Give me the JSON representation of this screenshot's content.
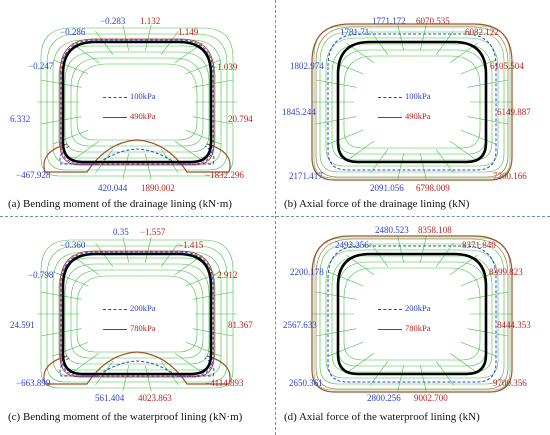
{
  "colors": {
    "blue": "#2b3fd6",
    "red": "#b8231d",
    "brown": "#a0522d",
    "grid": "#3fbf3f",
    "lining": "#000000"
  },
  "panels": [
    {
      "caption": "(a) Bending moment of the drainage lining (kN·m)",
      "legend": [
        "100kPa",
        "490kPa"
      ],
      "labels": [
        {
          "text": "−0.283",
          "color": "blue"
        },
        {
          "text": "1.132",
          "color": "red"
        },
        {
          "text": "−0.286",
          "color": "blue"
        },
        {
          "text": "1.149",
          "color": "red"
        },
        {
          "text": "−0.247",
          "color": "blue"
        },
        {
          "text": "−1.039",
          "color": "red"
        },
        {
          "text": "6.332",
          "color": "blue"
        },
        {
          "text": "20.794",
          "color": "red"
        },
        {
          "text": "−467.928",
          "color": "blue"
        },
        {
          "text": "−1832.296",
          "color": "red"
        },
        {
          "text": "420.044",
          "color": "blue"
        },
        {
          "text": "1890.002",
          "color": "red"
        }
      ]
    },
    {
      "caption": "(b) Axial force of the drainage lining (kN)",
      "legend": [
        "100kPa",
        "490kPa"
      ],
      "labels": [
        {
          "text": "1771.172",
          "color": "blue"
        },
        {
          "text": "6070.535",
          "color": "red"
        },
        {
          "text": "1781.71",
          "color": "blue"
        },
        {
          "text": "6082.122",
          "color": "red"
        },
        {
          "text": "1802.974",
          "color": "blue"
        },
        {
          "text": "6105.504",
          "color": "red"
        },
        {
          "text": "1845.244",
          "color": "blue"
        },
        {
          "text": "6149.887",
          "color": "red"
        },
        {
          "text": "2171.417",
          "color": "blue"
        },
        {
          "text": "7200.166",
          "color": "red"
        },
        {
          "text": "2091.056",
          "color": "blue"
        },
        {
          "text": "6798.009",
          "color": "red"
        }
      ]
    },
    {
      "caption": "(c) Bending moment of the waterproof lining (kN·m)",
      "legend": [
        "200kPa",
        "780kPa"
      ],
      "labels": [
        {
          "text": "0.35",
          "color": "blue"
        },
        {
          "text": "−1.557",
          "color": "red"
        },
        {
          "text": "−0.360",
          "color": "blue"
        },
        {
          "text": "−1.415",
          "color": "red"
        },
        {
          "text": "−0.798",
          "color": "blue"
        },
        {
          "text": "−2.912",
          "color": "red"
        },
        {
          "text": "24.591",
          "color": "blue"
        },
        {
          "text": "81.367",
          "color": "red"
        },
        {
          "text": "−663.899",
          "color": "blue"
        },
        {
          "text": "−4114.893",
          "color": "red"
        },
        {
          "text": "561.404",
          "color": "blue"
        },
        {
          "text": "4023.863",
          "color": "red"
        }
      ]
    },
    {
      "caption": "(d) Axial force of the waterproof lining (kN)",
      "legend": [
        "200kPa",
        "780kPa"
      ],
      "labels": [
        {
          "text": "2480.523",
          "color": "blue"
        },
        {
          "text": "8358.108",
          "color": "red"
        },
        {
          "text": "2493.256",
          "color": "blue"
        },
        {
          "text": "8371.840",
          "color": "red"
        },
        {
          "text": "2200.178",
          "color": "blue"
        },
        {
          "text": "8399.823",
          "color": "red"
        },
        {
          "text": "2567.633",
          "color": "blue"
        },
        {
          "text": "8444.353",
          "color": "red"
        },
        {
          "text": "2650.361",
          "color": "blue"
        },
        {
          "text": "9700.356",
          "color": "red"
        },
        {
          "text": "2800.256",
          "color": "blue"
        },
        {
          "text": "9002.700",
          "color": "red"
        }
      ]
    }
  ]
}
